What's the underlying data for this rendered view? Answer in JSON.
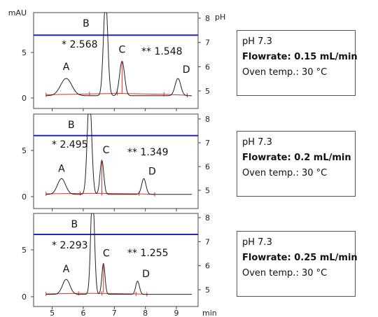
{
  "chart_data": [
    {
      "type": "line",
      "title": "",
      "xlabel": "min",
      "ylabel": "mAU",
      "ylabel_right": "pH",
      "xlim": [
        4.4,
        9.7
      ],
      "ylim": [
        -0.5,
        11.0
      ],
      "ylim_right": [
        4.7,
        8.2
      ],
      "x_ticks": [
        5,
        6,
        7,
        8,
        9
      ],
      "y_ticks": [
        0,
        5
      ],
      "y_ticks_right": [
        5,
        6,
        7,
        8
      ],
      "ph_line": 7.3,
      "annotations": [
        {
          "text": "* 2.568"
        },
        {
          "text": "** 1.548"
        }
      ],
      "peaks": [
        {
          "label": "A",
          "rt": 5.45,
          "height": 1.9,
          "width": 0.18
        },
        {
          "label": "B",
          "rt": 6.72,
          "height": 10.5,
          "width": 0.07
        },
        {
          "label": "C",
          "rt": 7.25,
          "height": 3.8,
          "width": 0.08
        },
        {
          "label": "D",
          "rt": 9.05,
          "height": 1.9,
          "width": 0.09
        }
      ],
      "integration_baseline": [
        [
          4.8,
          0.35
        ],
        [
          6.2,
          0.45
        ],
        [
          7.1,
          0.5
        ],
        [
          8.6,
          0.4
        ],
        [
          9.35,
          0.3
        ]
      ]
    },
    {
      "type": "line",
      "title": "",
      "xlabel": "min",
      "ylabel": "mAU",
      "ylabel_right": "pH",
      "xlim": [
        4.4,
        9.7
      ],
      "ylim": [
        -0.5,
        11.0
      ],
      "ylim_right": [
        4.7,
        8.2
      ],
      "x_ticks": [
        5,
        6,
        7,
        8,
        9
      ],
      "y_ticks": [
        0,
        5
      ],
      "y_ticks_right": [
        5,
        6,
        7,
        8
      ],
      "ph_line": 7.3,
      "annotations": [
        {
          "text": "* 2.495"
        },
        {
          "text": "** 1.349"
        }
      ],
      "peaks": [
        {
          "label": "A",
          "rt": 5.3,
          "height": 1.7,
          "width": 0.13
        },
        {
          "label": "B",
          "rt": 6.2,
          "height": 11.0,
          "width": 0.07
        },
        {
          "label": "C",
          "rt": 6.6,
          "height": 3.7,
          "width": 0.06
        },
        {
          "label": "D",
          "rt": 7.95,
          "height": 1.7,
          "width": 0.07
        }
      ],
      "integration_baseline": [
        [
          4.8,
          0.3
        ],
        [
          5.9,
          0.35
        ],
        [
          6.6,
          0.35
        ],
        [
          7.8,
          0.3
        ],
        [
          8.3,
          0.25
        ]
      ]
    },
    {
      "type": "line",
      "title": "",
      "xlabel": "min",
      "ylabel": "mAU",
      "ylabel_right": "pH",
      "xlim": [
        4.4,
        9.7
      ],
      "ylim": [
        -0.5,
        11.0
      ],
      "ylim_right": [
        4.7,
        8.2
      ],
      "x_ticks": [
        5,
        6,
        7,
        8,
        9
      ],
      "y_ticks": [
        0,
        5
      ],
      "y_ticks_right": [
        5,
        6,
        7,
        8
      ],
      "ph_line": 7.3,
      "annotations": [
        {
          "text": "* 2.293"
        },
        {
          "text": "** 1.255"
        }
      ],
      "peaks": [
        {
          "label": "A",
          "rt": 5.45,
          "height": 1.6,
          "width": 0.12
        },
        {
          "label": "B",
          "rt": 6.3,
          "height": 11.0,
          "width": 0.06
        },
        {
          "label": "C",
          "rt": 6.65,
          "height": 3.3,
          "width": 0.05
        },
        {
          "label": "D",
          "rt": 7.75,
          "height": 1.4,
          "width": 0.06
        }
      ],
      "integration_baseline": [
        [
          4.8,
          0.3
        ],
        [
          5.85,
          0.35
        ],
        [
          6.6,
          0.35
        ],
        [
          7.7,
          0.3
        ],
        [
          8.05,
          0.25
        ]
      ]
    }
  ],
  "info_boxes": [
    {
      "line1": "pH 7.3",
      "line2": "Flowrate: 0.15 mL/min",
      "line3": "Oven temp.: 30 °C"
    },
    {
      "line1": "pH 7.3",
      "line2": "Flowrate: 0.2 mL/min",
      "line3": "Oven temp.: 30 °C"
    },
    {
      "line1": "pH 7.3",
      "line2": "Flowrate: 0.25 mL/min",
      "line3": "Oven temp.: 30 °C"
    }
  ],
  "colors": {
    "trace": "#222222",
    "ph_line": "#2222cc",
    "baseline": "#e03030",
    "axis": "#444444"
  }
}
